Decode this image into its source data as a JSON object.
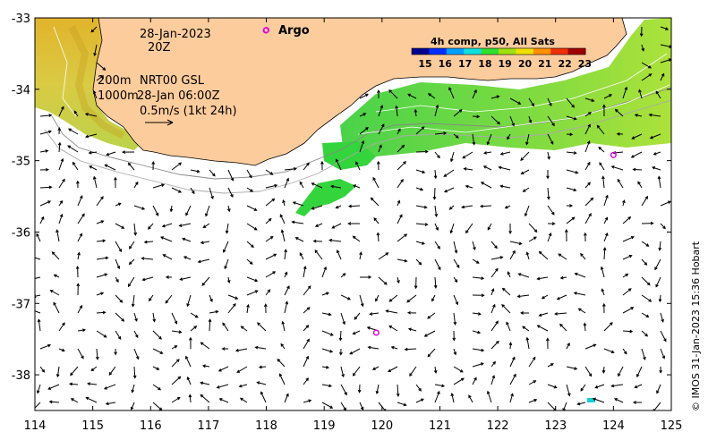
{
  "map": {
    "lon_ticks": [
      "114",
      "115",
      "116",
      "117",
      "118",
      "119",
      "120",
      "121",
      "122",
      "123",
      "124",
      "125"
    ],
    "lat_ticks": [
      "-33",
      "-34",
      "-35",
      "-36",
      "-37",
      "-38"
    ],
    "lon_range": [
      114,
      125
    ],
    "lat_range": [
      -38.5,
      -33
    ],
    "land_color": "#fdcc9c",
    "arrow_color": "#000000"
  },
  "annotations": {
    "date": "28-Jan-2023",
    "time": "20Z",
    "depth_200": "200m",
    "depth_1000": "1000m",
    "product": "NRT00 GSL",
    "product_time": "28-Jan 06:00Z",
    "scale_label": "0.5m/s (1kt 24h)",
    "argo_label": "Argo",
    "credit": "© IMOS 31-Jan-2023 15:36 Hobart"
  },
  "colorbar": {
    "title": "4h comp, p50, All Sats",
    "labels": [
      "15",
      "16",
      "17",
      "18",
      "19",
      "20",
      "21",
      "22",
      "23"
    ],
    "colors": [
      "#00008f",
      "#0030ff",
      "#00a0ff",
      "#10e0e0",
      "#30e030",
      "#a0e010",
      "#f0e000",
      "#ff9000",
      "#f03000",
      "#a00000"
    ]
  },
  "argo_floats": [
    {
      "lon": 118.0,
      "lat": -33.17
    },
    {
      "lon": 124.0,
      "lat": -34.92
    },
    {
      "lon": 119.9,
      "lat": -37.41
    }
  ]
}
